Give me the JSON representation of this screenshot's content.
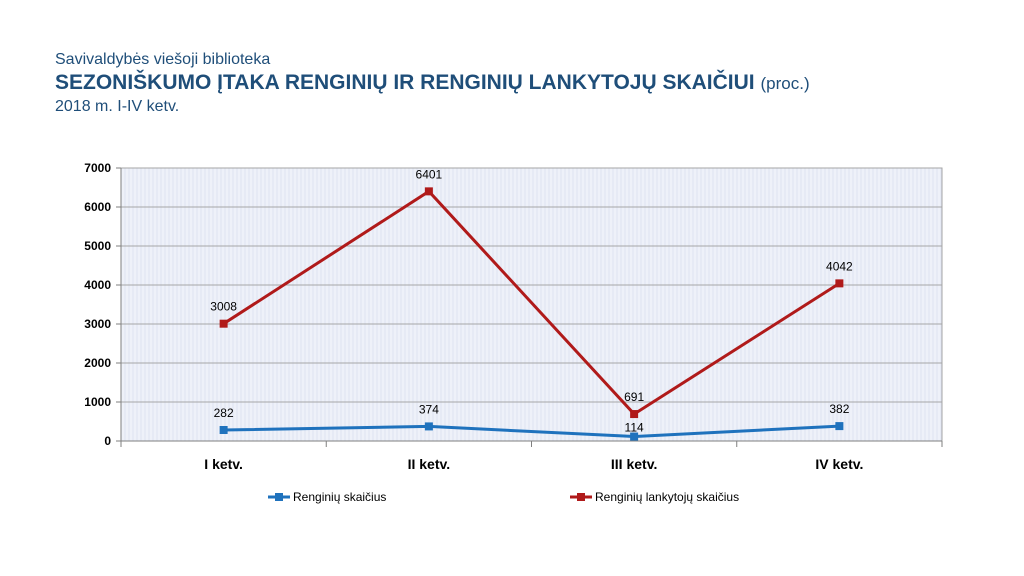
{
  "header": {
    "subtitle": "Savivaldybės viešoji biblioteka",
    "title": "SEZONIŠKUMO ĮTAKA  RENGINIŲ IR RENGINIŲ LANKYTOJŲ SKAIČIUI",
    "unit": "(proc.)",
    "period": "2018 m. I-IV ketv."
  },
  "chart_data": {
    "type": "line",
    "categories": [
      "I ketv.",
      "II ketv.",
      "III ketv.",
      "IV ketv."
    ],
    "ylim": [
      0,
      7000
    ],
    "yticks": [
      0,
      1000,
      2000,
      3000,
      4000,
      5000,
      6000,
      7000
    ],
    "grid": true,
    "legend_position": "bottom",
    "series": [
      {
        "name": "Renginių skaičius",
        "values": [
          282,
          374,
          114,
          382
        ],
        "color": "#1f72bd"
      },
      {
        "name": "Renginių lankytojų skaičius",
        "values": [
          3008,
          6401,
          691,
          4042
        ],
        "color": "#b01a1a"
      }
    ]
  }
}
